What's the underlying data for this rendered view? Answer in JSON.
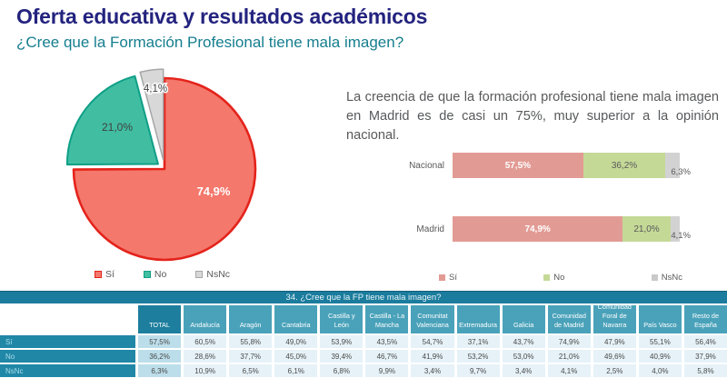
{
  "slide": {
    "title": "Oferta educativa y resultados académicos",
    "subtitle": "¿Cree que la Formación Profesional tiene mala imagen?",
    "commentary": "La creencia de que la formación profesional tiene mala imagen en Madrid es de casi un 75%, muy superior a la opinión nacional."
  },
  "colors": {
    "title": "#23237f",
    "subtitle": "#157e8f",
    "pie_si_fill": "#f4786c",
    "pie_si_stroke": "#e4231b",
    "pie_no_fill": "#41bea2",
    "pie_no_stroke": "#0e9f87",
    "pie_nsnc_fill": "#d8d8d8",
    "pie_nsnc_stroke": "#a6a6a6",
    "bar_si": "#e29b94",
    "bar_no": "#c5d997",
    "bar_nsnc": "#d2d2d2",
    "table_banner": "#1b7c9d",
    "table_header": "#4aa2ba",
    "table_total_header": "#1e7e9e",
    "table_row_label": "#2187a7",
    "table_cell": "#e6f2f8",
    "table_total_cell": "#bcdeea"
  },
  "pie": {
    "labels": {
      "si": "74,9%",
      "no": "21,0%",
      "nsnc": "4,1%"
    },
    "legend": [
      "Sí",
      "No",
      "NsNc"
    ]
  },
  "bars": {
    "rows": [
      {
        "category": "Nacional",
        "segments": [
          {
            "pct": 57.5,
            "label": "57,5%"
          },
          {
            "pct": 36.2,
            "label": "36,2%"
          },
          {
            "pct": 6.3,
            "label": "6,3%"
          }
        ]
      },
      {
        "category": "Madrid",
        "segments": [
          {
            "pct": 74.9,
            "label": "74,9%"
          },
          {
            "pct": 21.0,
            "label": "21,0%"
          },
          {
            "pct": 4.1,
            "label": "4,1%"
          }
        ]
      }
    ],
    "legend": [
      "Sí",
      "No",
      "NsNc"
    ]
  },
  "table": {
    "caption": "34. ¿Cree que la FP tiene mala imagen?",
    "col_headers": [
      "TOTAL",
      "Andalucía",
      "Aragón",
      "Cantabria",
      "Castilla y León",
      "Castilla - La Mancha",
      "Comunitat Valenciana",
      "Extremadura",
      "Galicia",
      "Comunidad de Madrid",
      "Comunidad Foral de Navarra",
      "País Vasco",
      "Resto de España"
    ],
    "rows": [
      {
        "label": "Sí",
        "values": [
          "57,5%",
          "60,5%",
          "55,8%",
          "49,0%",
          "53,9%",
          "43,5%",
          "54,7%",
          "37,1%",
          "43,7%",
          "74,9%",
          "47,9%",
          "55,1%",
          "56,4%"
        ]
      },
      {
        "label": "No",
        "values": [
          "36,2%",
          "28,6%",
          "37,7%",
          "45,0%",
          "39,4%",
          "46,7%",
          "41,9%",
          "53,2%",
          "53,0%",
          "21,0%",
          "49,6%",
          "40,9%",
          "37,9%"
        ]
      },
      {
        "label": "NsNc",
        "values": [
          "6,3%",
          "10,9%",
          "6,5%",
          "6,1%",
          "6,8%",
          "9,9%",
          "3,4%",
          "9,7%",
          "3,4%",
          "4,1%",
          "2,5%",
          "4,0%",
          "5,8%"
        ]
      }
    ]
  },
  "chart_data": [
    {
      "type": "pie",
      "title": "¿Cree que la Formación Profesional tiene mala imagen?",
      "labels": [
        "Sí",
        "No",
        "NsNc"
      ],
      "values": [
        74.9,
        21.0,
        4.1
      ],
      "colors": [
        "#f4786c",
        "#41bea2",
        "#d8d8d8"
      ],
      "legend_position": "bottom",
      "exploded_slices": [
        "No",
        "NsNc"
      ]
    },
    {
      "type": "bar",
      "orientation": "horizontal",
      "stacked": true,
      "categories": [
        "Nacional",
        "Madrid"
      ],
      "series": [
        {
          "name": "Sí",
          "values": [
            57.5,
            74.9
          ]
        },
        {
          "name": "No",
          "values": [
            36.2,
            21.0
          ]
        },
        {
          "name": "NsNc",
          "values": [
            6.3,
            4.1
          ]
        }
      ],
      "xlim": [
        0,
        100
      ],
      "legend_position": "bottom",
      "grid": false
    },
    {
      "type": "table",
      "title": "34. ¿Cree que la FP tiene mala imagen?",
      "columns": [
        "",
        "TOTAL",
        "Andalucía",
        "Aragón",
        "Cantabria",
        "Castilla y León",
        "Castilla - La Mancha",
        "Comunitat Valenciana",
        "Extremadura",
        "Galicia",
        "Comunidad de Madrid",
        "Comunidad Foral de Navarra",
        "País Vasco",
        "Resto de España"
      ],
      "rows": [
        [
          "Sí",
          "57,5%",
          "60,5%",
          "55,8%",
          "49,0%",
          "53,9%",
          "43,5%",
          "54,7%",
          "37,1%",
          "43,7%",
          "74,9%",
          "47,9%",
          "55,1%",
          "56,4%"
        ],
        [
          "No",
          "36,2%",
          "28,6%",
          "37,7%",
          "45,0%",
          "39,4%",
          "46,7%",
          "41,9%",
          "53,2%",
          "53,0%",
          "21,0%",
          "49,6%",
          "40,9%",
          "37,9%"
        ],
        [
          "NsNc",
          "6,3%",
          "10,9%",
          "6,5%",
          "6,1%",
          "6,8%",
          "9,9%",
          "3,4%",
          "9,7%",
          "3,4%",
          "4,1%",
          "2,5%",
          "4,0%",
          "5,8%"
        ]
      ]
    }
  ]
}
